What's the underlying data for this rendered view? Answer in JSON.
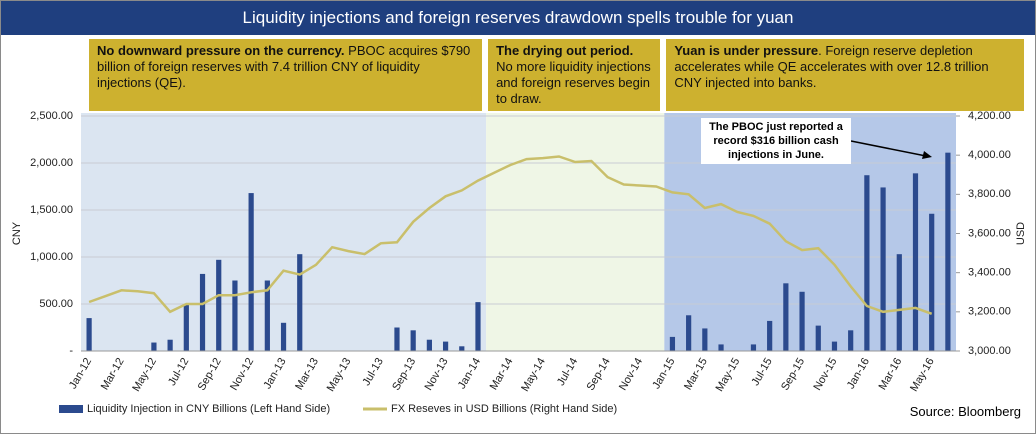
{
  "chart_data": {
    "type": "bar_line",
    "title": "Liquidity injections and foreign reserves drawdown spells trouble for yuan",
    "categories": [
      "Jan-12",
      null,
      "Mar-12",
      null,
      "May-12",
      null,
      "Jul-12",
      null,
      "Sep-12",
      null,
      "Nov-12",
      null,
      "Jan-13",
      null,
      "Mar-13",
      null,
      "May-13",
      null,
      "Jul-13",
      null,
      "Sep-13",
      null,
      "Nov-13",
      null,
      "Jan-14",
      null,
      "Mar-14",
      null,
      "May-14",
      null,
      "Jul-14",
      null,
      "Sep-14",
      null,
      "Nov-14",
      null,
      "Jan-15",
      null,
      "Mar-15",
      null,
      "May-15",
      null,
      "Jul-15",
      null,
      "Sep-15",
      null,
      "Nov-15",
      null,
      "Jan-16",
      null,
      "Mar-16",
      null,
      "May-16",
      null
    ],
    "series": [
      {
        "name": "Liquidity Injection in CNY Billions (Left Hand Side)",
        "color": "#2b4a8e",
        "kind": "bar",
        "axis": "y",
        "values": [
          350,
          0,
          0,
          0,
          90,
          120,
          490,
          820,
          970,
          750,
          1680,
          750,
          300,
          1030,
          0,
          0,
          0,
          0,
          0,
          250,
          220,
          120,
          100,
          50,
          520,
          0,
          0,
          0,
          0,
          0,
          0,
          0,
          0,
          0,
          0,
          0,
          150,
          380,
          240,
          70,
          0,
          70,
          320,
          720,
          630,
          270,
          100,
          220,
          1870,
          1740,
          1030,
          1890,
          1460,
          2110
        ]
      },
      {
        "name": "FX Reseves in USD Billions (Right Hand Side)",
        "color": "#c9bf6b",
        "kind": "line",
        "axis": "y2",
        "values": [
          3250,
          3280,
          3310,
          3305,
          3295,
          3200,
          3240,
          3240,
          3285,
          3285,
          3300,
          3310,
          3410,
          3390,
          3440,
          3530,
          3510,
          3495,
          3550,
          3555,
          3660,
          3730,
          3790,
          3820,
          3870,
          3910,
          3950,
          3980,
          3985,
          3993,
          3965,
          3970,
          3888,
          3850,
          3845,
          3840,
          3810,
          3800,
          3730,
          3750,
          3710,
          3690,
          3650,
          3560,
          3515,
          3525,
          3440,
          3330,
          3230,
          3200,
          3210,
          3220,
          3190,
          null
        ]
      }
    ],
    "ylim": [
      0,
      2500
    ],
    "yticks": [
      {
        "value": 0,
        "label": "-"
      },
      {
        "value": 500,
        "label": "500.00"
      },
      {
        "value": 1000,
        "label": "1,000.00"
      },
      {
        "value": 1500,
        "label": "1,500.00"
      },
      {
        "value": 2000,
        "label": "2,000.00"
      },
      {
        "value": 2500,
        "label": "2,500.00"
      }
    ],
    "y2lim": [
      3000,
      4200
    ],
    "y2ticks": [
      {
        "value": 3000,
        "label": "3,000.00"
      },
      {
        "value": 3200,
        "label": "3,200.00"
      },
      {
        "value": 3400,
        "label": "3,400.00"
      },
      {
        "value": 3600,
        "label": "3,600.00"
      },
      {
        "value": 3800,
        "label": "3,800.00"
      },
      {
        "value": 4000,
        "label": "4,000.00"
      },
      {
        "value": 4200,
        "label": "4,200.00"
      }
    ],
    "ylabel": "CNY",
    "y2label": "USD",
    "grid": true,
    "annotations": [
      {
        "bold": "No downward pressure on the currency.",
        "text": " PBOC acquires $790 billion of foreign reserves with 7.4 trillion CNY of liquidity injections (QE)."
      },
      {
        "bold": "The drying out period.",
        "text": " No more liquidity injections and foreign reserves begin to draw."
      },
      {
        "bold": "Yuan is under pressure",
        "text": ". Foreign reserve depletion accelerates while QE accelerates with over 12.8 trillion CNY injected into banks."
      }
    ],
    "callout": "The PBOC just reported a record $316 billion cash injections in June.",
    "source": "Source: Bloomberg"
  }
}
